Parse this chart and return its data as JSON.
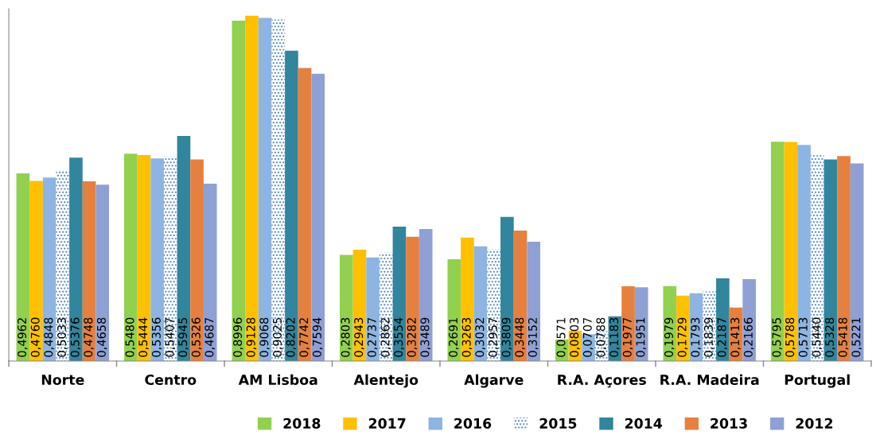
{
  "chart_data": {
    "type": "bar",
    "categories": [
      "Norte",
      "Centro",
      "AM Lisboa",
      "Alentejo",
      "Algarve",
      "R.A. Açores",
      "R.A. Madeira",
      "Portugal"
    ],
    "legend": "bottom",
    "grid": false,
    "series": [
      {
        "name": "2018",
        "color": "#92d050",
        "values": [
          0.4962,
          0.548,
          0.8996,
          0.2803,
          0.2691,
          0.0571,
          0.1979,
          0.5795
        ],
        "value_labels": [
          "0,4962",
          "0,5480",
          "0,8996",
          "0,2803",
          "0,2691",
          "0,0571",
          "0,1979",
          "0,5795"
        ]
      },
      {
        "name": "2017",
        "color": "#ffc000",
        "values": [
          0.476,
          0.5444,
          0.9128,
          0.2943,
          0.3263,
          0.0803,
          0.1729,
          0.5788
        ],
        "value_labels": [
          "0,4760",
          "0,5444",
          "0,9128",
          "0,2943",
          "0,3263",
          "0,0803",
          "0,1729",
          "0,5788"
        ]
      },
      {
        "name": "2016",
        "color": "#8db4e2",
        "values": [
          0.4848,
          0.5356,
          0.9068,
          0.2737,
          0.3032,
          0.0707,
          0.1793,
          0.5713
        ],
        "value_labels": [
          "0,4848",
          "0,5356",
          "0,9068",
          "0,2737",
          "0,3032",
          "0,0707",
          "0,1793",
          "0,5713"
        ]
      },
      {
        "name": "2015",
        "color": "#4f81bd",
        "line_style": "dotted",
        "values": [
          0.5033,
          0.5407,
          0.9025,
          0.2862,
          0.2957,
          0.0788,
          0.1839,
          0.544
        ],
        "value_labels": [
          "0,5033",
          "0,5407",
          "0,9025",
          "0,2862",
          "0,2957",
          "0,0788",
          "0,1839",
          "0,5440"
        ]
      },
      {
        "name": "2014",
        "color": "#31859c",
        "values": [
          0.5376,
          0.5945,
          0.8202,
          0.3554,
          0.3809,
          0.1183,
          0.2187,
          0.5328
        ],
        "value_labels": [
          "0,5376",
          "0,5945",
          "0,8202",
          "0,3554",
          "0,3809",
          "0,1183",
          "0,2187",
          "0,5328"
        ]
      },
      {
        "name": "2013",
        "color": "#e6803e",
        "values": [
          0.4748,
          0.5326,
          0.7742,
          0.3282,
          0.3448,
          0.1977,
          0.1413,
          0.5418
        ],
        "value_labels": [
          "0,4748",
          "0,5326",
          "0,7742",
          "0,3282",
          "0,3448",
          "0,1977",
          "0,1413",
          "0,5418"
        ]
      },
      {
        "name": "2012",
        "color": "#8ea0d4",
        "values": [
          0.4658,
          0.4687,
          0.7594,
          0.3489,
          0.3152,
          0.1951,
          0.2166,
          0.5221
        ],
        "value_labels": [
          "0,4658",
          "0,4687",
          "0,7594",
          "0,3489",
          "0,3152",
          "0,1951",
          "0,2166",
          "0,5221"
        ]
      }
    ]
  }
}
